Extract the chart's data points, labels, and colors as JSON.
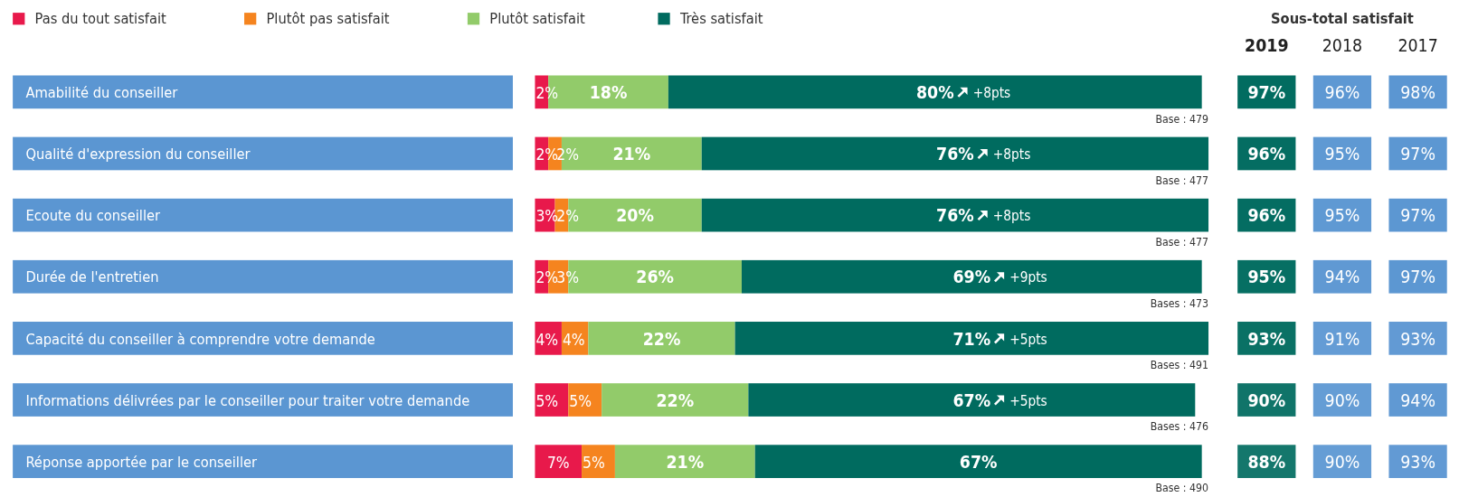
{
  "chart_data": [
    {
      "type": "bar",
      "orientation": "horizontal",
      "stacked": true,
      "legend": "top left",
      "tick_labels": "y",
      "xlim": [
        0,
        101
      ],
      "categories": [
        "Amabilité du conseiller",
        "Qualité d'expression du conseiller",
        "Ecoute du conseiller",
        "Durée de l'entretien",
        "Capacité du conseiller à comprendre votre demande",
        "Informations délivrées par le conseiller pour traiter votre demande",
        "Réponse apportée par le conseiller"
      ],
      "series": [
        {
          "name": "Pas du tout satisfait",
          "color": "#e8194b",
          "values": [
            2,
            2,
            3,
            2,
            4,
            5,
            7
          ],
          "value_labels": [
            "2%",
            "2%",
            "3%",
            "2%",
            "4%",
            "5%",
            "7%"
          ]
        },
        {
          "name": "Plutôt pas satisfait",
          "color": "#f5841f",
          "values": [
            null,
            2,
            2,
            3,
            4,
            5,
            5
          ],
          "value_labels": [
            null,
            "2%",
            "2%",
            "3%",
            "4%",
            "5%",
            "5%"
          ]
        },
        {
          "name": "Plutôt satisfait",
          "color": "#92cb6a",
          "values": [
            18,
            21,
            20,
            26,
            22,
            22,
            21
          ],
          "value_labels": [
            "18%",
            "21%",
            "20%",
            "26%",
            "22%",
            "22%",
            "21%"
          ]
        },
        {
          "name": "Très satisfait",
          "color": "#006b5f",
          "values": [
            80,
            76,
            76,
            69,
            71,
            67,
            67
          ],
          "value_labels": [
            "80%",
            "76%",
            "76%",
            "69%",
            "71%",
            "67%",
            "67%"
          ]
        }
      ],
      "annotations": [
        "+8pts",
        "+8pts",
        "+8pts",
        "+9pts",
        "+5pts",
        "+5pts",
        "Base : 479",
        "Base : 477",
        "Base : 477",
        "Bases : 473",
        "Bases : 491",
        "Bases : 476",
        "Base : 490"
      ]
    },
    {
      "type": "heatmap",
      "title": "Sous-total satisfait",
      "data_labels": true,
      "categories": [
        "2019",
        "2018",
        "2017"
      ],
      "y_categories": [
        null,
        null,
        null,
        null,
        null,
        null,
        null
      ],
      "tick_labels": "x",
      "colors": [
        "#006b5f",
        "#5b96d2",
        "#5b96d2"
      ],
      "cells": [
        [
          97,
          96,
          98
        ],
        [
          96,
          95,
          97
        ],
        [
          96,
          95,
          97
        ],
        [
          95,
          94,
          97
        ],
        [
          93,
          91,
          93
        ],
        [
          90,
          90,
          94
        ],
        [
          88,
          90,
          93
        ]
      ],
      "cell_labels": [
        [
          "97%",
          "96%",
          "98%"
        ],
        [
          "96%",
          "95%",
          "97%"
        ],
        [
          "96%",
          "95%",
          "97%"
        ],
        [
          "95%",
          "94%",
          "97%"
        ],
        [
          "93%",
          "91%",
          "93%"
        ],
        [
          "90%",
          "90%",
          "94%"
        ],
        [
          "88%",
          "90%",
          "93%"
        ]
      ]
    }
  ]
}
